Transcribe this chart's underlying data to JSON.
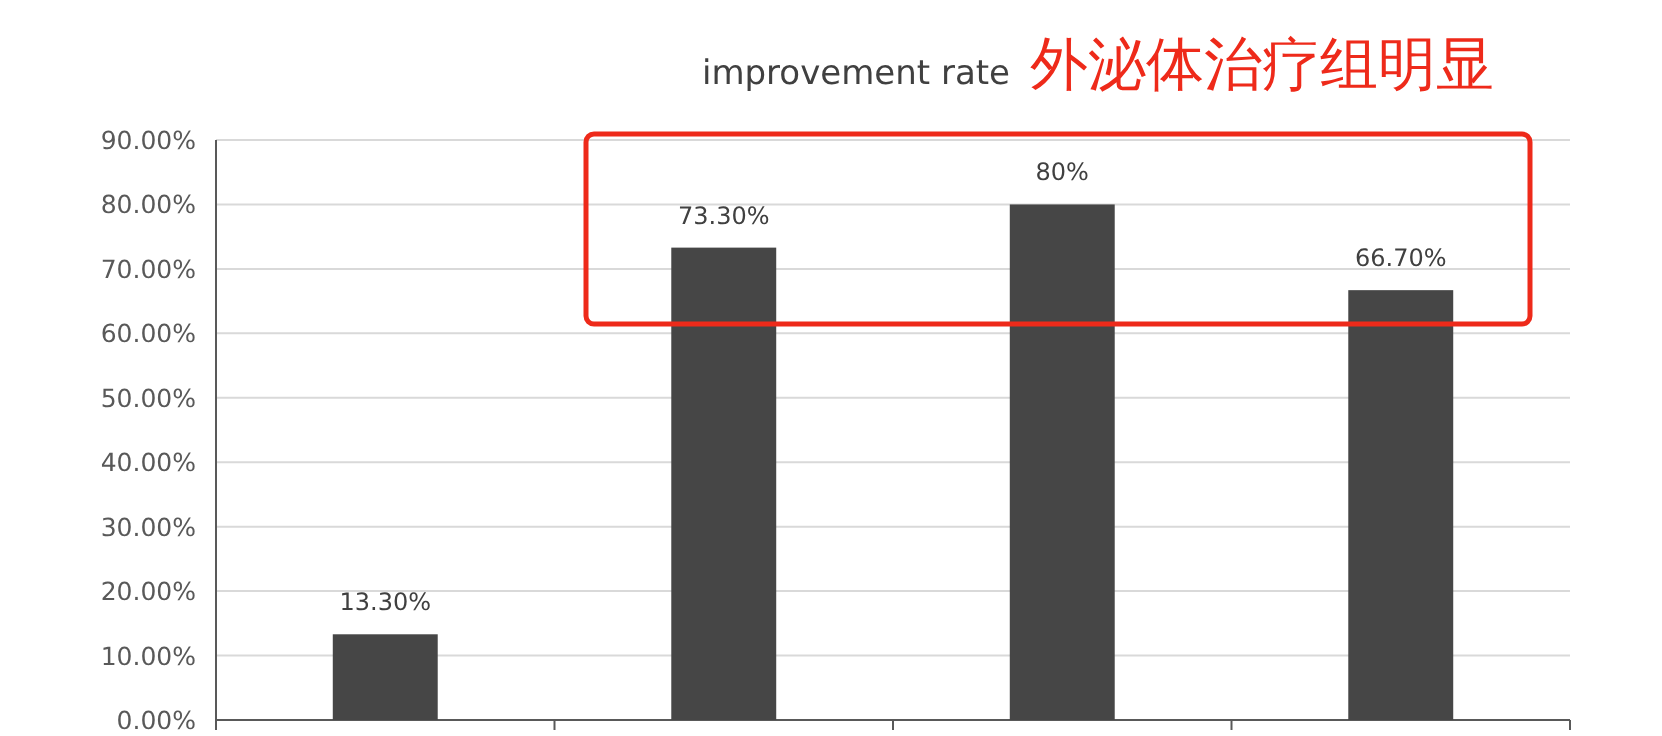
{
  "chart_data": {
    "type": "bar",
    "title": "improvement rate",
    "annotations": [
      "外泌体治疗组明显"
    ],
    "categories": [
      null,
      null,
      null,
      null
    ],
    "values": [
      13.3,
      73.3,
      80,
      66.7
    ],
    "value_labels": [
      "13.30%",
      "73.30%",
      "80%",
      "66.70%"
    ],
    "color": "#464646",
    "ylim": [
      0,
      90
    ],
    "yticks": [
      {
        "value": 0,
        "label": "0.00%"
      },
      {
        "value": 10,
        "label": "10.00%"
      },
      {
        "value": 20,
        "label": "20.00%"
      },
      {
        "value": 30,
        "label": "30.00%"
      },
      {
        "value": 40,
        "label": "40.00%"
      },
      {
        "value": 50,
        "label": "50.00%"
      },
      {
        "value": 60,
        "label": "60.00%"
      },
      {
        "value": 70,
        "label": "70.00%"
      },
      {
        "value": 80,
        "label": "80.00%"
      },
      {
        "value": 90,
        "label": "90.00%"
      }
    ],
    "grid": "y"
  }
}
